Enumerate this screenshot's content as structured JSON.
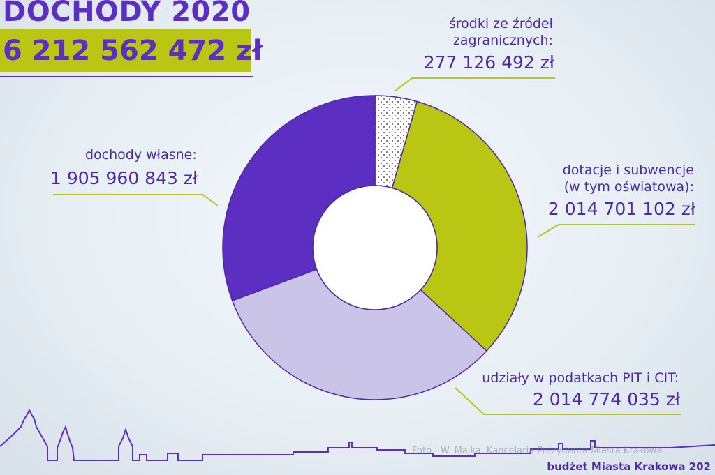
{
  "title": "DOCHODY 2020",
  "total": "6 212 562 472 zł",
  "labels": {
    "zagraniczne_line1": "środki ze źródeł",
    "zagraniczne_line2": "zagranicznych:",
    "zagraniczne_value": "277 126 492 zł",
    "wlasne_line1": "dochody własne:",
    "wlasne_value": "1 905 960 843 zł",
    "dotacje_line1": "dotacje i subwencje",
    "dotacje_line2": "(w tym oświatowa):",
    "dotacje_value": "2 014 701 102 zł",
    "udzialy_line1": "udziały w podatkach PIT i CIT:",
    "udzialy_value": "2 014 774 035 zł"
  },
  "credit": "Foto - W. Majka, Kancelaria Prezydenta Miasta Krakowa",
  "footer": "budżet Miasta Krakowa 202",
  "colors": {
    "purple": "#5c2fc2",
    "lime": "#b9c613",
    "lavender": "#c9c4e8",
    "dotted": "#ffffff"
  },
  "chart_data": {
    "type": "pie",
    "series": [
      {
        "name": "środki ze źródeł zagranicznych",
        "value": 277126492,
        "color": "#ffffff",
        "pattern": "dots"
      },
      {
        "name": "dotacje i subwencje (w tym oświatowa)",
        "value": 2014701102,
        "color": "#b9c613"
      },
      {
        "name": "udziały w podatkach PIT i CIT",
        "value": 2014774035,
        "color": "#c9c4e8"
      },
      {
        "name": "dochody własne",
        "value": 1905960843,
        "color": "#5c2fc2"
      }
    ],
    "total": 6212562472
  }
}
